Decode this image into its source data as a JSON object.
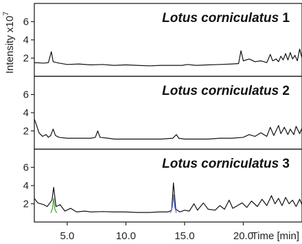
{
  "chart_data": {
    "type": "line",
    "x_axis": {
      "label": "Time [min]",
      "range": [
        2.2,
        25.0
      ],
      "ticks": [
        5.0,
        10.0,
        15.0,
        20.0
      ],
      "tick_labels": [
        "5.0",
        "10.0",
        "15.0",
        "20.0"
      ]
    },
    "y_axis": {
      "label": "Intensity x10",
      "exponent": "7",
      "range": [
        0,
        8
      ],
      "ticks": [
        2,
        4,
        6
      ]
    },
    "grid": false,
    "panels": [
      {
        "title_italic": "Lotus corniculatus",
        "title_number": "1",
        "series": [
          {
            "color": "#111111",
            "points": [
              [
                2.2,
                1.5
              ],
              [
                3.0,
                1.45
              ],
              [
                3.4,
                1.5
              ],
              [
                3.65,
                2.7
              ],
              [
                3.8,
                1.6
              ],
              [
                4.3,
                1.45
              ],
              [
                5.0,
                1.3
              ],
              [
                6.0,
                1.35
              ],
              [
                7.0,
                1.25
              ],
              [
                8.0,
                1.3
              ],
              [
                9.0,
                1.2
              ],
              [
                10.0,
                1.25
              ],
              [
                11.0,
                1.2
              ],
              [
                12.0,
                1.15
              ],
              [
                13.0,
                1.2
              ],
              [
                14.0,
                1.2
              ],
              [
                14.8,
                1.2
              ],
              [
                15.2,
                1.3
              ],
              [
                16.0,
                1.2
              ],
              [
                17.0,
                1.25
              ],
              [
                18.0,
                1.3
              ],
              [
                19.0,
                1.35
              ],
              [
                19.6,
                1.4
              ],
              [
                19.8,
                2.8
              ],
              [
                20.0,
                1.7
              ],
              [
                20.5,
                1.9
              ],
              [
                21.0,
                1.6
              ],
              [
                21.5,
                1.7
              ],
              [
                22.0,
                1.5
              ],
              [
                22.3,
                2.4
              ],
              [
                22.5,
                1.7
              ],
              [
                22.8,
                1.9
              ],
              [
                23.0,
                1.6
              ],
              [
                23.2,
                2.2
              ],
              [
                23.4,
                1.8
              ],
              [
                23.6,
                2.5
              ],
              [
                23.8,
                1.8
              ],
              [
                24.0,
                2.6
              ],
              [
                24.2,
                1.9
              ],
              [
                24.4,
                2.3
              ],
              [
                24.6,
                1.7
              ],
              [
                24.8,
                3.0
              ],
              [
                25.0,
                2.0
              ]
            ]
          }
        ]
      },
      {
        "title_italic": "Lotus corniculatus",
        "title_number": "2",
        "series": [
          {
            "color": "#111111",
            "points": [
              [
                2.2,
                3.3
              ],
              [
                2.4,
                2.6
              ],
              [
                2.6,
                1.8
              ],
              [
                2.9,
                1.4
              ],
              [
                3.2,
                1.6
              ],
              [
                3.4,
                1.3
              ],
              [
                3.6,
                1.5
              ],
              [
                3.8,
                2.2
              ],
              [
                4.0,
                1.5
              ],
              [
                4.3,
                1.3
              ],
              [
                5.0,
                1.2
              ],
              [
                6.0,
                1.2
              ],
              [
                7.0,
                1.2
              ],
              [
                7.4,
                1.3
              ],
              [
                7.6,
                2.0
              ],
              [
                7.8,
                1.3
              ],
              [
                8.5,
                1.2
              ],
              [
                9.0,
                1.1
              ],
              [
                10.0,
                1.1
              ],
              [
                11.0,
                1.1
              ],
              [
                12.0,
                1.1
              ],
              [
                13.0,
                1.1
              ],
              [
                14.0,
                1.2
              ],
              [
                14.3,
                1.6
              ],
              [
                14.5,
                1.2
              ],
              [
                15.0,
                1.1
              ],
              [
                16.0,
                1.1
              ],
              [
                17.0,
                1.1
              ],
              [
                18.0,
                1.2
              ],
              [
                19.0,
                1.2
              ],
              [
                20.0,
                1.3
              ],
              [
                20.5,
                1.6
              ],
              [
                21.0,
                1.4
              ],
              [
                21.5,
                1.8
              ],
              [
                22.0,
                1.4
              ],
              [
                22.3,
                2.4
              ],
              [
                22.6,
                1.5
              ],
              [
                23.0,
                2.6
              ],
              [
                23.2,
                1.7
              ],
              [
                23.5,
                2.4
              ],
              [
                23.8,
                1.6
              ],
              [
                24.0,
                2.2
              ],
              [
                24.3,
                1.6
              ],
              [
                24.5,
                2.5
              ],
              [
                24.8,
                1.7
              ],
              [
                25.0,
                2.3
              ]
            ]
          }
        ]
      },
      {
        "title_italic": "Lotus corniculatus",
        "title_number": "3",
        "series": [
          {
            "color": "#111111",
            "points": [
              [
                2.2,
                2.6
              ],
              [
                2.5,
                2.1
              ],
              [
                3.0,
                1.9
              ],
              [
                3.3,
                1.7
              ],
              [
                3.7,
                2.4
              ],
              [
                3.85,
                3.8
              ],
              [
                4.05,
                1.7
              ],
              [
                4.4,
                1.9
              ],
              [
                4.8,
                1.2
              ],
              [
                5.3,
                1.5
              ],
              [
                5.8,
                1.1
              ],
              [
                6.5,
                1.2
              ],
              [
                7.0,
                1.1
              ],
              [
                8.0,
                1.15
              ],
              [
                9.0,
                1.1
              ],
              [
                10.0,
                1.1
              ],
              [
                11.0,
                1.05
              ],
              [
                12.0,
                1.05
              ],
              [
                12.8,
                1.1
              ],
              [
                13.6,
                1.1
              ],
              [
                13.9,
                1.3
              ],
              [
                14.05,
                4.3
              ],
              [
                14.25,
                1.4
              ],
              [
                14.6,
                1.1
              ],
              [
                15.0,
                1.3
              ],
              [
                15.4,
                1.2
              ],
              [
                15.8,
                2.0
              ],
              [
                16.1,
                1.3
              ],
              [
                16.6,
                2.1
              ],
              [
                17.0,
                1.4
              ],
              [
                17.6,
                1.3
              ],
              [
                18.0,
                1.8
              ],
              [
                18.4,
                1.4
              ],
              [
                18.8,
                2.4
              ],
              [
                19.1,
                1.5
              ],
              [
                19.5,
                1.8
              ],
              [
                19.9,
                2.1
              ],
              [
                20.3,
                1.6
              ],
              [
                20.7,
                2.3
              ],
              [
                21.2,
                1.7
              ],
              [
                21.6,
                2.5
              ],
              [
                22.0,
                1.8
              ],
              [
                22.4,
                2.9
              ],
              [
                22.7,
                2.0
              ],
              [
                23.0,
                2.6
              ],
              [
                23.3,
                1.8
              ],
              [
                23.6,
                2.7
              ],
              [
                23.9,
                2.0
              ],
              [
                24.2,
                2.4
              ],
              [
                24.5,
                1.7
              ],
              [
                24.8,
                2.5
              ],
              [
                25.0,
                1.9
              ]
            ]
          },
          {
            "color": "#4a9a3a",
            "points": [
              [
                3.6,
                1.0
              ],
              [
                3.75,
                1.5
              ],
              [
                3.85,
                2.6
              ],
              [
                3.95,
                1.4
              ],
              [
                4.1,
                1.0
              ]
            ]
          },
          {
            "color": "#5a6fd0",
            "points": [
              [
                13.8,
                1.0
              ],
              [
                13.95,
                1.6
              ],
              [
                14.05,
                3.0
              ],
              [
                14.15,
                1.7
              ],
              [
                14.3,
                1.0
              ]
            ]
          }
        ]
      }
    ]
  }
}
